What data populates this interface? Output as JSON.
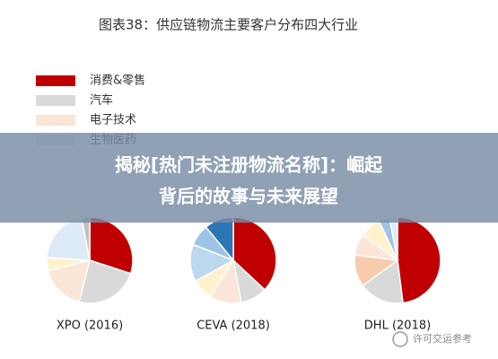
{
  "figure_title": "图表38：供应链物流主要客户分布四大行业",
  "legend": [
    {
      "name": "消费&零售",
      "color": "#c00000"
    },
    {
      "name": "汽车",
      "color": "#d9d9d9"
    },
    {
      "name": "电子技术",
      "color": "#fbe5d6"
    },
    {
      "name": "生物医药",
      "color": "#dbe7f3"
    }
  ],
  "banner": [
    "揭秘[热门未注册物流名称]：崛起",
    "背后的故事与未来展望"
  ],
  "watermark": "许可交运参考",
  "chart_data": [
    {
      "type": "pie",
      "title": "XPO (2016)",
      "values": [
        30,
        24,
        17,
        5,
        21,
        3
      ],
      "colors": [
        "#c00000",
        "#d9d9d9",
        "#fbe5d6",
        "#fff2cc",
        "#ddebf7",
        "#bfbfbf"
      ]
    },
    {
      "type": "pie",
      "title": "CEVA (2018)",
      "values": [
        37,
        10,
        12,
        8,
        14,
        8,
        11
      ],
      "colors": [
        "#c00000",
        "#d9d9d9",
        "#fbe5d6",
        "#fff2cc",
        "#bdd7ee",
        "#9dc3e6",
        "#2e75b6"
      ]
    },
    {
      "type": "pie",
      "title": "DHL (2018)",
      "values": [
        48,
        17,
        12,
        8,
        8,
        4,
        3
      ],
      "colors": [
        "#c00000",
        "#d9d9d9",
        "#f8cbad",
        "#fbe5d6",
        "#fff2cc",
        "#9dc3e6",
        "#ddebf7"
      ]
    }
  ]
}
